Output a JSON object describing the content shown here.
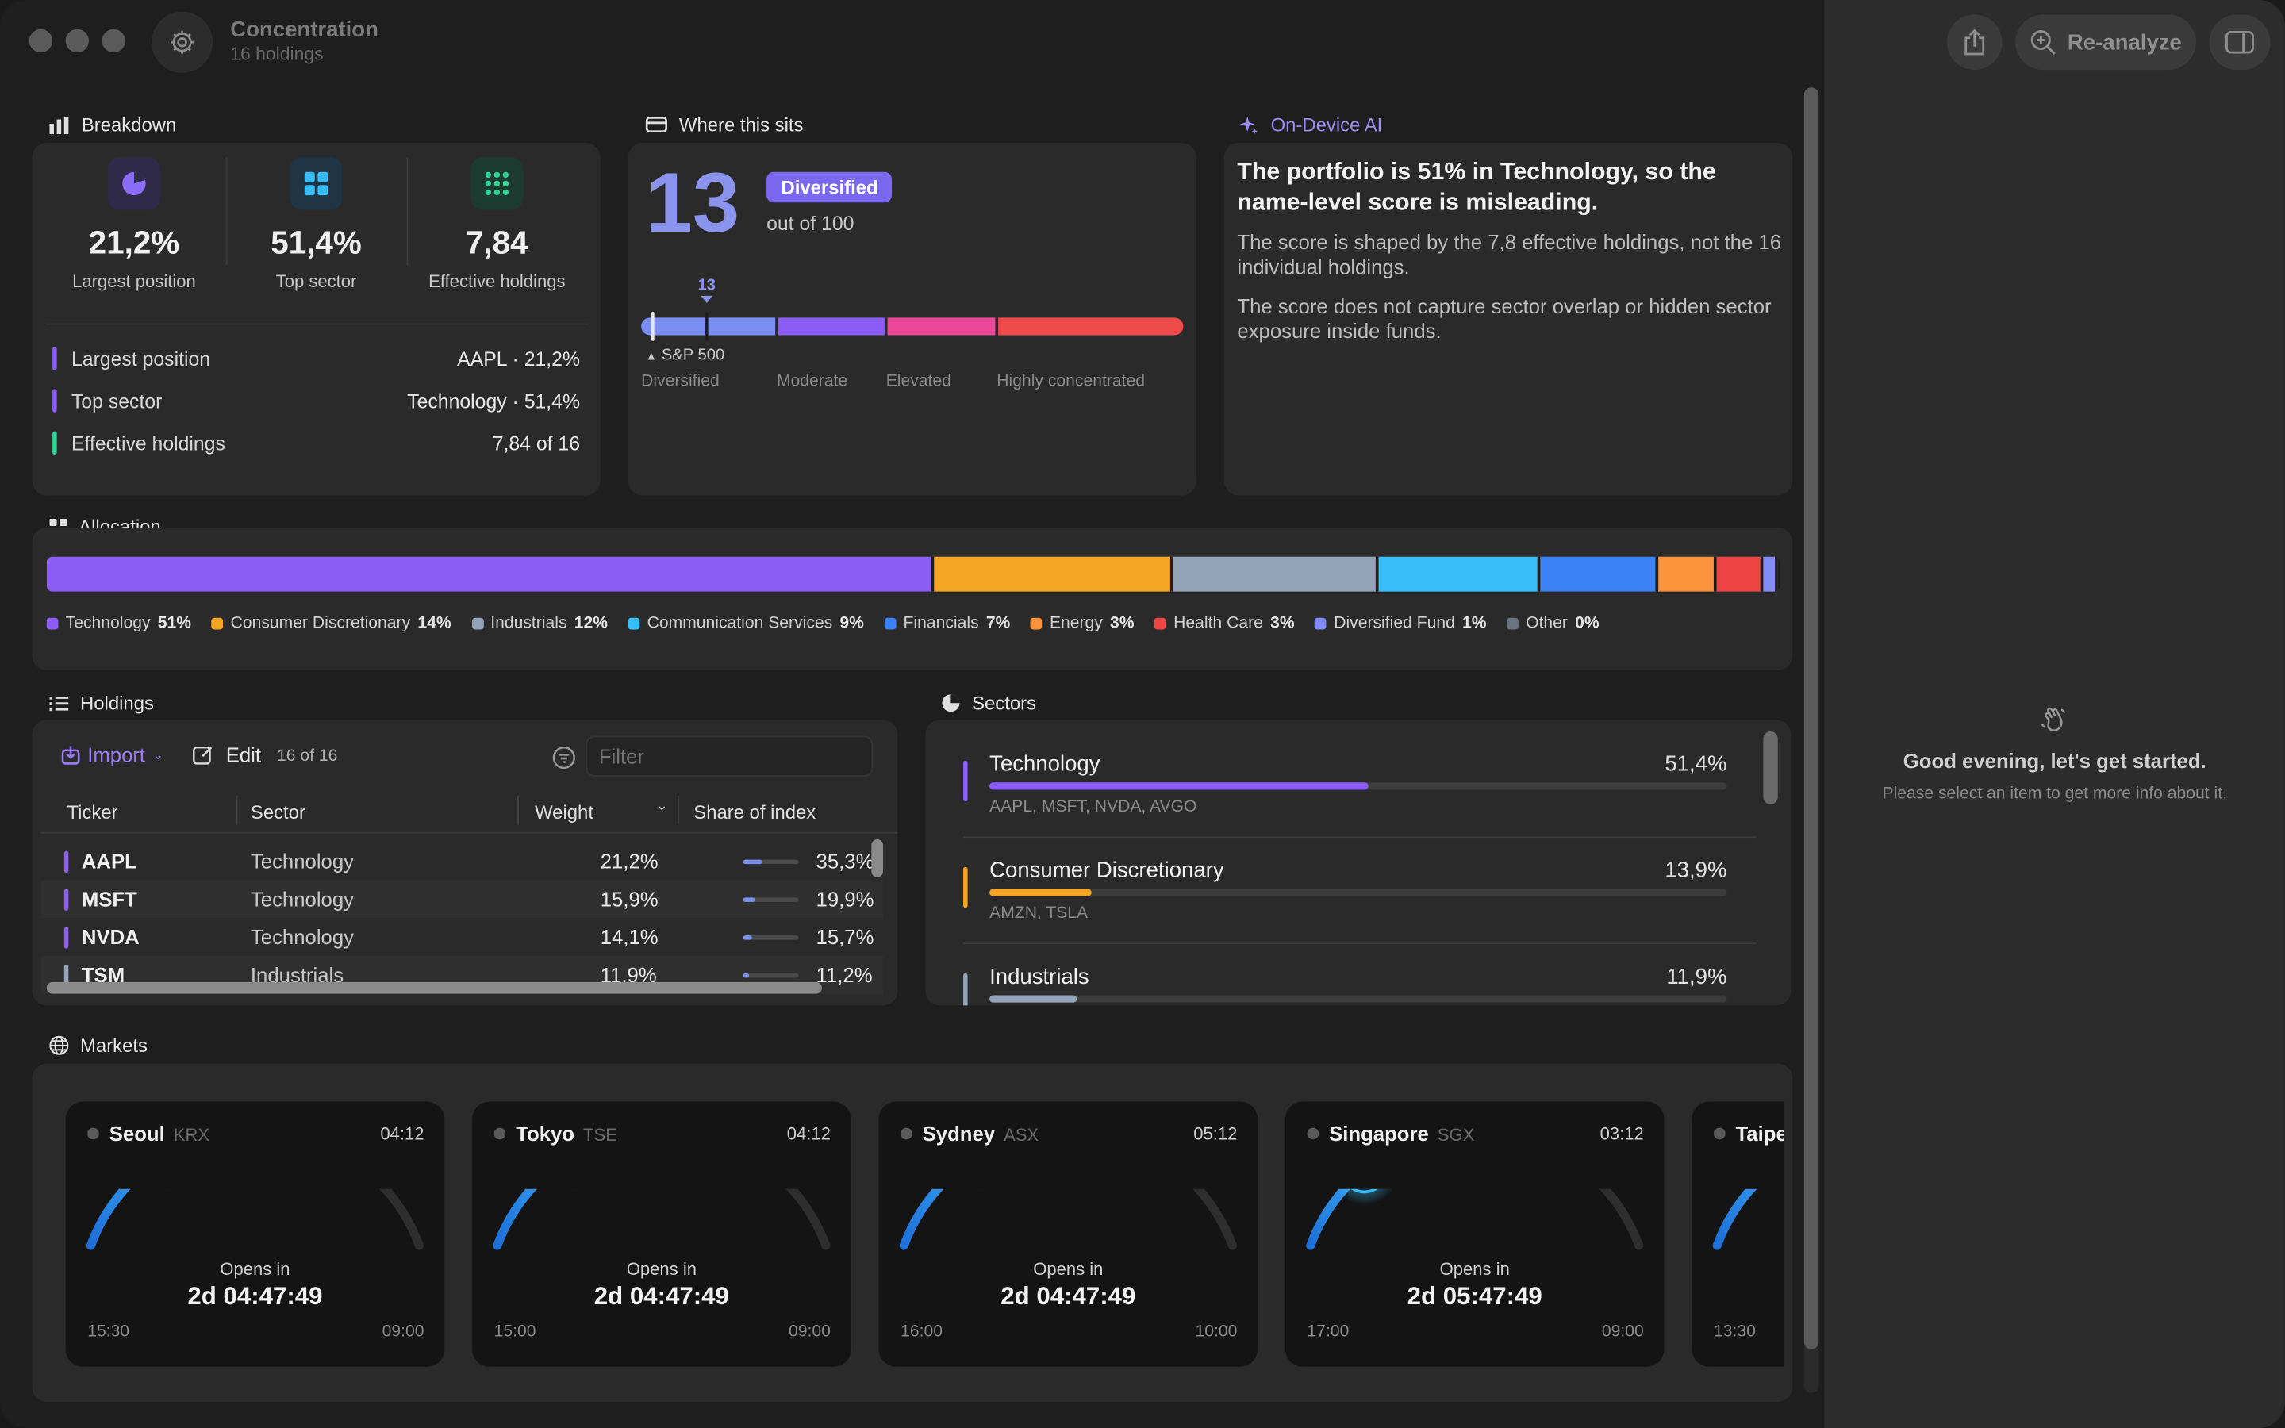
{
  "window": {
    "title": "Concentration",
    "subtitle": "16 holdings"
  },
  "toolbar": {
    "reanalyze_label": "Re-analyze"
  },
  "right_pane": {
    "greeting": "Good evening, let's get started.",
    "hint": "Please select an item to get more info about it."
  },
  "breakdown": {
    "title": "Breakdown",
    "stats": [
      {
        "value": "21,2%",
        "label": "Largest position",
        "icon": "pie-chart-icon",
        "color": "#8b6cf6"
      },
      {
        "value": "51,4%",
        "label": "Top sector",
        "icon": "grid-icon",
        "color": "#38bdf8"
      },
      {
        "value": "7,84",
        "label": "Effective holdings",
        "icon": "dots-grid-icon",
        "color": "#34d399"
      }
    ],
    "rows": [
      {
        "label": "Largest position",
        "value": "AAPL · 21,2%",
        "color": "#8b5cf6"
      },
      {
        "label": "Top sector",
        "value": "Technology · 51,4%",
        "color": "#8b5cf6"
      },
      {
        "label": "Effective holdings",
        "value": "7,84 of 16",
        "color": "#34d399"
      }
    ]
  },
  "where": {
    "title": "Where this sits",
    "score": "13",
    "badge": "Diversified",
    "out_of": "out of 100",
    "marker_label": "13",
    "marker_value": 13,
    "benchmark_label": "S&P 500",
    "scale_labels": [
      "Diversified",
      "Moderate",
      "Elevated",
      "Highly concentrated"
    ]
  },
  "ai": {
    "title": "On-Device AI",
    "headline": "The portfolio is 51% in Technology, so the name-level score is misleading.",
    "para1": "The score is shaped by the 7,8 effective holdings, not the 16 individual holdings.",
    "para2": "The score does not capture sector overlap or hidden sector exposure inside funds."
  },
  "allocation": {
    "title": "Allocation",
    "segments": [
      {
        "name": "Technology",
        "pct": "51%",
        "share": 51.4,
        "color": "#8b5cf6"
      },
      {
        "name": "Consumer Discretionary",
        "pct": "14%",
        "share": 13.9,
        "color": "#f5a524"
      },
      {
        "name": "Industrials",
        "pct": "12%",
        "share": 11.9,
        "color": "#94a3b8"
      },
      {
        "name": "Communication Services",
        "pct": "9%",
        "share": 9.4,
        "color": "#38bdf8"
      },
      {
        "name": "Financials",
        "pct": "7%",
        "share": 6.8,
        "color": "#3b82f6"
      },
      {
        "name": "Energy",
        "pct": "3%",
        "share": 3.4,
        "color": "#fb923c"
      },
      {
        "name": "Health Care",
        "pct": "3%",
        "share": 2.7,
        "color": "#ef4444"
      },
      {
        "name": "Diversified Fund",
        "pct": "1%",
        "share": 0.8,
        "color": "#818cf8"
      },
      {
        "name": "Other",
        "pct": "0%",
        "share": 0.2,
        "color": "#6b7280"
      }
    ]
  },
  "holdings": {
    "title": "Holdings",
    "import_label": "Import",
    "edit_label": "Edit",
    "count": "16 of 16",
    "filter_placeholder": "Filter",
    "columns": [
      "Ticker",
      "Sector",
      "Weight",
      "Share of index"
    ],
    "rows": [
      {
        "ticker": "AAPL",
        "sector": "Technology",
        "weight": "21,2%",
        "share": "35,3%",
        "fill": 0.353,
        "color": "#8b5cf6"
      },
      {
        "ticker": "MSFT",
        "sector": "Technology",
        "weight": "15,9%",
        "share": "19,9%",
        "fill": 0.199,
        "color": "#8b5cf6"
      },
      {
        "ticker": "NVDA",
        "sector": "Technology",
        "weight": "14,1%",
        "share": "15,7%",
        "fill": 0.157,
        "color": "#8b5cf6"
      },
      {
        "ticker": "TSM",
        "sector": "Industrials",
        "weight": "11,9%",
        "share": "11,2%",
        "fill": 0.112,
        "color": "#94a3b8"
      }
    ]
  },
  "sectors": {
    "title": "Sectors",
    "items": [
      {
        "name": "Technology",
        "pct": "51,4%",
        "share": 0.514,
        "tickers": "AAPL, MSFT, NVDA, AVGO",
        "color": "#8b5cf6"
      },
      {
        "name": "Consumer Discretionary",
        "pct": "13,9%",
        "share": 0.139,
        "tickers": "AMZN, TSLA",
        "color": "#f5a524"
      },
      {
        "name": "Industrials",
        "pct": "11,9%",
        "share": 0.119,
        "tickers": "",
        "color": "#94a3b8"
      }
    ]
  },
  "markets": {
    "title": "Markets",
    "items": [
      {
        "city": "Seoul",
        "exchange": "KRX",
        "time": "04:12",
        "opens": "Opens in",
        "countdown": "2d 04:47:49",
        "left": "15:30",
        "right": "09:00",
        "progress": 0.28
      },
      {
        "city": "Tokyo",
        "exchange": "TSE",
        "time": "04:12",
        "opens": "Opens in",
        "countdown": "2d 04:47:49",
        "left": "15:00",
        "right": "09:00",
        "progress": 0.28
      },
      {
        "city": "Sydney",
        "exchange": "ASX",
        "time": "05:12",
        "opens": "Opens in",
        "countdown": "2d 04:47:49",
        "left": "16:00",
        "right": "10:00",
        "progress": 0.28
      },
      {
        "city": "Singapore",
        "exchange": "SGX",
        "time": "03:12",
        "opens": "Opens in",
        "countdown": "2d 05:47:49",
        "left": "17:00",
        "right": "09:00",
        "progress": 0.22
      },
      {
        "city": "Taipei",
        "exchange": "",
        "time": "",
        "opens": "",
        "countdown": "",
        "left": "13:30",
        "right": "",
        "progress": 0.28
      }
    ]
  }
}
